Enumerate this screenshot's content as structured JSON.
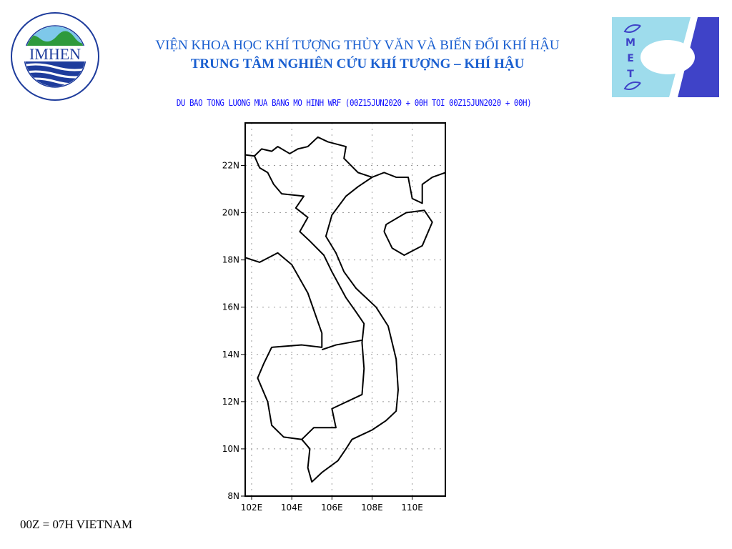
{
  "header": {
    "line1": "VIỆN KHOA HỌC KHÍ TƯỢNG THỦY VĂN VÀ BIẾN ĐỔI KHÍ HẬU",
    "line2": "TRUNG TÂM NGHIÊN CỨU KHÍ TƯỢNG – KHÍ HẬU"
  },
  "logos": {
    "left": {
      "text": "IMHEN",
      "ring_text": "VIỆN KHOA HỌC KHÍ TƯỢNG THỦY VĂN VÀ BIẾN ĐỔI KHÍ HẬU"
    },
    "right": {
      "text": "CMETC"
    }
  },
  "map": {
    "title": "DU BAO TONG LUONG MUA BANG MO HINH WRF (00Z15JUN2020 + 00H TOI 00Z15JUN2020 + 00H)",
    "lat_ticks": [
      "8N",
      "10N",
      "12N",
      "14N",
      "16N",
      "18N",
      "20N",
      "22N"
    ],
    "lat_values": [
      8,
      10,
      12,
      14,
      16,
      18,
      20,
      22
    ],
    "lon_ticks": [
      "102E",
      "104E",
      "106E",
      "108E",
      "110E"
    ],
    "lon_values": [
      102,
      104,
      106,
      108,
      110
    ],
    "lon_range": [
      101.68,
      111.65
    ],
    "lat_range": [
      8,
      23.8
    ],
    "grid": "dotted",
    "colors": {
      "outline": "#000000",
      "grid": "#999999",
      "title": "#1010ff"
    }
  },
  "footer_note": "00Z = 07H VIETNAM"
}
